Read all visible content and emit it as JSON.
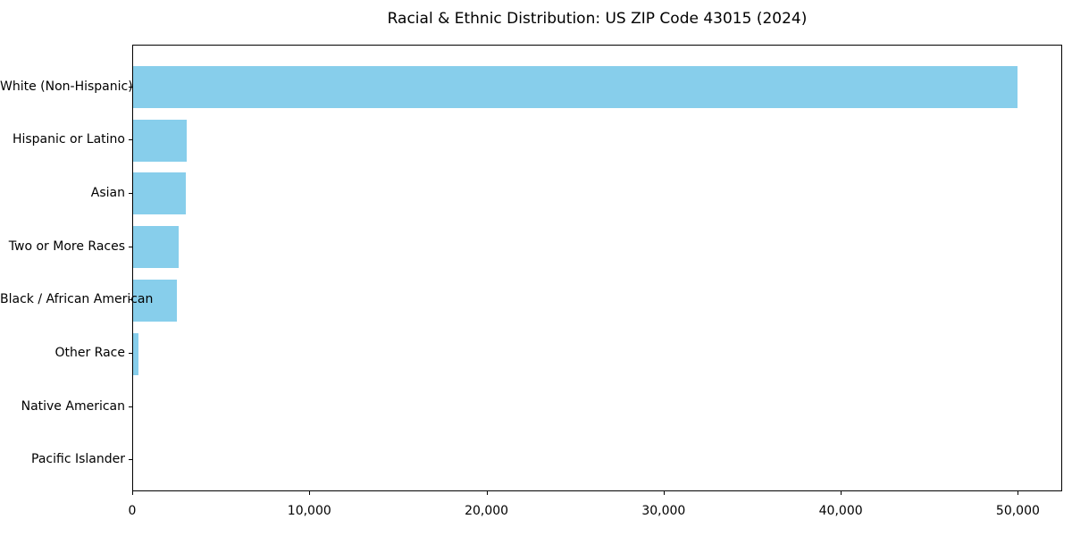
{
  "figure": {
    "background": "#ffffff",
    "text_color": "#000000",
    "spine_color": "#000000"
  },
  "chart_data": {
    "type": "bar",
    "orientation": "horizontal",
    "title": "Racial & Ethnic Distribution: US ZIP Code 43015 (2024)",
    "categories": [
      "White (Non-Hispanic)",
      "Hispanic or Latino",
      "Asian",
      "Two or More Races",
      "Black / African American",
      "Other Race",
      "Native American",
      "Pacific Islander"
    ],
    "values": [
      50000,
      3030,
      2980,
      2580,
      2470,
      300,
      0,
      0
    ],
    "bar_color": "#87CEEB",
    "xlabel": "",
    "ylabel": "",
    "xlim": [
      0,
      52500
    ],
    "x_ticks": [
      0,
      10000,
      20000,
      30000,
      40000,
      50000
    ],
    "x_tick_labels": [
      "0",
      "10,000",
      "20,000",
      "30,000",
      "40,000",
      "50,000"
    ],
    "grid": false,
    "legend": "none"
  }
}
